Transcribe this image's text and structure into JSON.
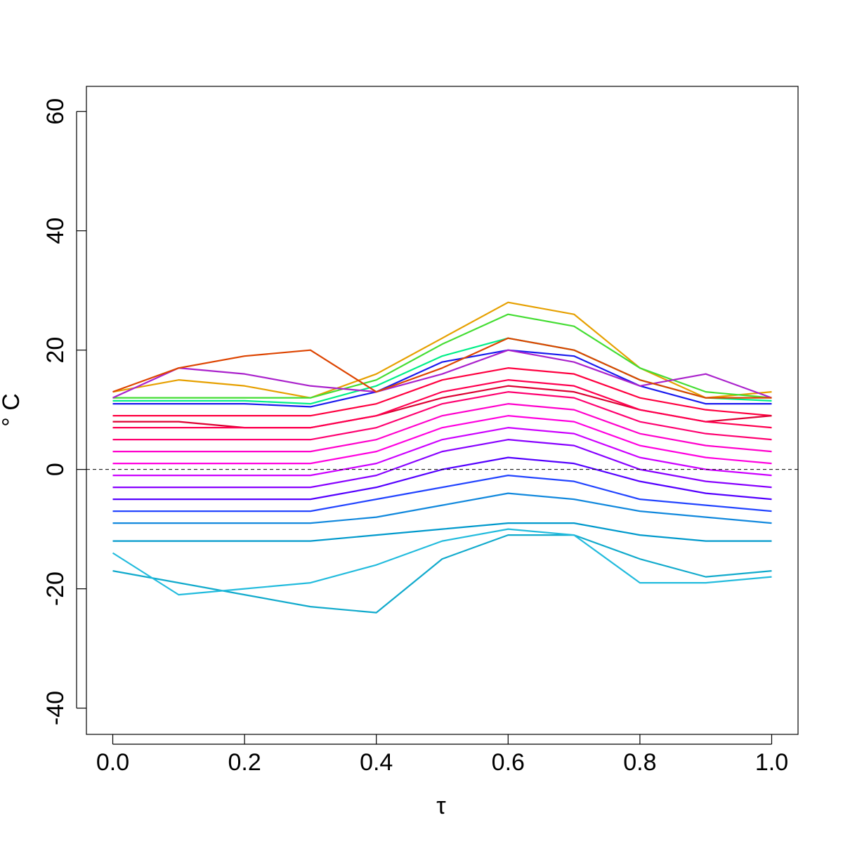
{
  "chart_data": {
    "type": "line",
    "xlabel": "τ",
    "ylabel": "° C",
    "x": [
      0,
      0.1,
      0.2,
      0.3,
      0.4,
      0.5,
      0.6,
      0.7,
      0.8,
      0.9,
      1.0
    ],
    "xlim": [
      -0.04,
      1.04
    ],
    "ylim": [
      -44.4,
      64.2
    ],
    "xticks": [
      {
        "value": 0,
        "label": "0.0"
      },
      {
        "value": 0.2,
        "label": "0.2"
      },
      {
        "value": 0.4,
        "label": "0.4"
      },
      {
        "value": 0.6,
        "label": "0.6"
      },
      {
        "value": 0.8,
        "label": "0.8"
      },
      {
        "value": 1.0,
        "label": "1.0"
      }
    ],
    "yticks": [
      -40,
      -20,
      0,
      20,
      40,
      60
    ],
    "hline": 0,
    "series": [
      {
        "color": "#e6a000",
        "values": [
          13,
          15,
          14,
          12,
          16,
          22,
          28,
          26,
          17,
          12,
          13
        ]
      },
      {
        "color": "#44dd33",
        "values": [
          12,
          12,
          12,
          12,
          15,
          21,
          26,
          24,
          17,
          13,
          12
        ]
      },
      {
        "color": "#00ee88",
        "values": [
          11.5,
          11.5,
          11.5,
          11,
          14,
          19,
          22,
          20,
          15,
          12,
          11.5
        ]
      },
      {
        "color": "#1a1aee",
        "values": [
          11,
          11,
          11,
          10.5,
          13,
          18,
          20,
          19,
          14,
          11,
          11
        ]
      },
      {
        "color": "#aa22cc",
        "values": [
          12,
          17,
          16,
          14,
          13,
          16,
          20,
          18,
          14,
          16,
          12
        ]
      },
      {
        "color": "#dd4400",
        "values": [
          13,
          17,
          19,
          20,
          13,
          17,
          22,
          20,
          15,
          12,
          12
        ]
      },
      {
        "color": "#ff0040",
        "values": [
          9,
          9,
          9,
          9,
          11,
          15,
          17,
          16,
          12,
          10,
          9
        ]
      },
      {
        "color": "#dd0033",
        "values": [
          8,
          8,
          7,
          7,
          9,
          12,
          14,
          13,
          10,
          8,
          9
        ]
      },
      {
        "color": "#ff0050",
        "values": [
          7,
          7,
          7,
          7,
          9,
          13,
          15,
          14,
          10,
          8,
          7
        ]
      },
      {
        "color": "#ff0070",
        "values": [
          5,
          5,
          5,
          5,
          7,
          11,
          13,
          12,
          8,
          6,
          5
        ]
      },
      {
        "color": "#ff00cc",
        "values": [
          3,
          3,
          3,
          3,
          5,
          9,
          11,
          10,
          6,
          4,
          3
        ]
      },
      {
        "color": "#ff00e0",
        "values": [
          1,
          1,
          1,
          1,
          3,
          7,
          9,
          8,
          4,
          2,
          1
        ]
      },
      {
        "color": "#cc00ff",
        "values": [
          -1,
          -1,
          -1,
          -1,
          1,
          5,
          7,
          6,
          2,
          0,
          -1
        ]
      },
      {
        "color": "#8800ff",
        "values": [
          -3,
          -3,
          -3,
          -3,
          -1,
          3,
          5,
          4,
          0,
          -2,
          -3
        ]
      },
      {
        "color": "#5500ff",
        "values": [
          -5,
          -5,
          -5,
          -5,
          -3,
          0,
          2,
          1,
          -2,
          -4,
          -5
        ]
      },
      {
        "color": "#2244ff",
        "values": [
          -7,
          -7,
          -7,
          -7,
          -5,
          -3,
          -1,
          -2,
          -5,
          -6,
          -7
        ]
      },
      {
        "color": "#1188dd",
        "values": [
          -9,
          -9,
          -9,
          -9,
          -8,
          -6,
          -4,
          -5,
          -7,
          -8,
          -9
        ]
      },
      {
        "color": "#0099cc",
        "values": [
          -12,
          -12,
          -12,
          -12,
          -11,
          -10,
          -9,
          -9,
          -11,
          -12,
          -12
        ]
      },
      {
        "color": "#11aacc",
        "values": [
          -17,
          -19,
          -21,
          -23,
          -24,
          -15,
          -11,
          -11,
          -15,
          -18,
          -17
        ]
      },
      {
        "color": "#22bbdd",
        "values": [
          -14,
          -21,
          -20,
          -19,
          -16,
          -12,
          -10,
          -11,
          -19,
          -19,
          -18
        ]
      }
    ]
  }
}
